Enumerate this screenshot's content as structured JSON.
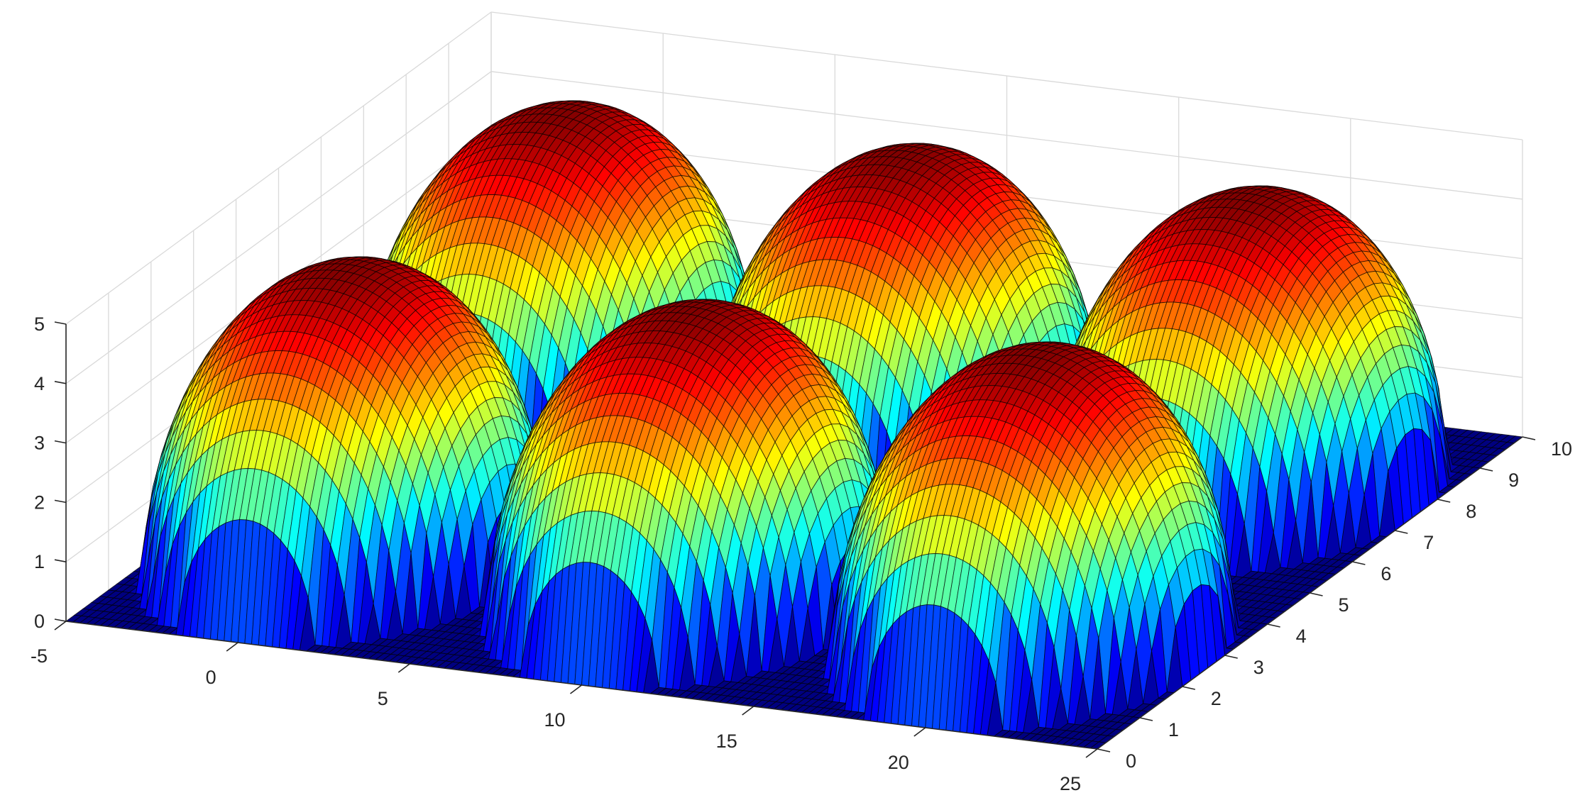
{
  "chart_data": {
    "type": "surface",
    "title": "",
    "xlabel": "",
    "ylabel": "",
    "zlabel": "",
    "colormap": "jet",
    "grid": true,
    "xlim": [
      -5,
      25
    ],
    "ylim": [
      0,
      10
    ],
    "zlim": [
      0,
      5
    ],
    "x_ticks": [
      -5,
      0,
      5,
      10,
      15,
      20,
      25
    ],
    "y_ticks": [
      0,
      1,
      2,
      3,
      4,
      5,
      6,
      7,
      8,
      9,
      10
    ],
    "z_ticks": [
      0,
      1,
      2,
      3,
      4,
      5
    ],
    "x_tick_labels": [
      "-5",
      "0",
      "5",
      "10",
      "15",
      "20",
      "25"
    ],
    "y_tick_labels": [
      "0",
      "1",
      "2",
      "3",
      "4",
      "5",
      "6",
      "7",
      "8",
      "9",
      "10"
    ],
    "z_tick_labels": [
      "0",
      "1",
      "2",
      "3",
      "4",
      "5"
    ],
    "domes": [
      {
        "x_range": [
          -5,
          5
        ],
        "y_range": [
          0,
          5
        ],
        "peak_z": 5
      },
      {
        "x_range": [
          5,
          15
        ],
        "y_range": [
          0,
          5
        ],
        "peak_z": 5
      },
      {
        "x_range": [
          15,
          25
        ],
        "y_range": [
          0,
          5
        ],
        "peak_z": 5
      },
      {
        "x_range": [
          -5,
          5
        ],
        "y_range": [
          5,
          10
        ],
        "peak_z": 5
      },
      {
        "x_range": [
          5,
          15
        ],
        "y_range": [
          5,
          10
        ],
        "peak_z": 5
      },
      {
        "x_range": [
          15,
          25
        ],
        "y_range": [
          5,
          10
        ],
        "peak_z": 5
      }
    ]
  }
}
